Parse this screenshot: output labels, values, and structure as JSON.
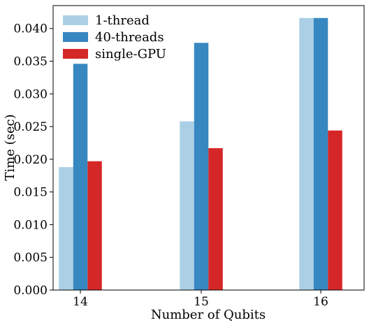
{
  "chart_data": {
    "type": "bar",
    "xlabel": "Number of Qubits",
    "ylabel": "Time (sec)",
    "categories": [
      "14",
      "15",
      "16"
    ],
    "ylim": [
      0,
      0.0435
    ],
    "yticks": [
      "0.000",
      "0.005",
      "0.010",
      "0.015",
      "0.020",
      "0.025",
      "0.030",
      "0.035",
      "0.040"
    ],
    "grid": false,
    "legend_position": "top-left",
    "series": [
      {
        "name": "1-thread",
        "color": "#abd0e6",
        "values": [
          0.0188,
          0.0258,
          0.0416
        ]
      },
      {
        "name": "40-threads",
        "color": "#3787c0",
        "values": [
          0.0346,
          0.0378,
          0.0416
        ]
      },
      {
        "name": "single-GPU",
        "color": "#d62728",
        "values": [
          0.0197,
          0.0217,
          0.0244
        ]
      }
    ]
  }
}
